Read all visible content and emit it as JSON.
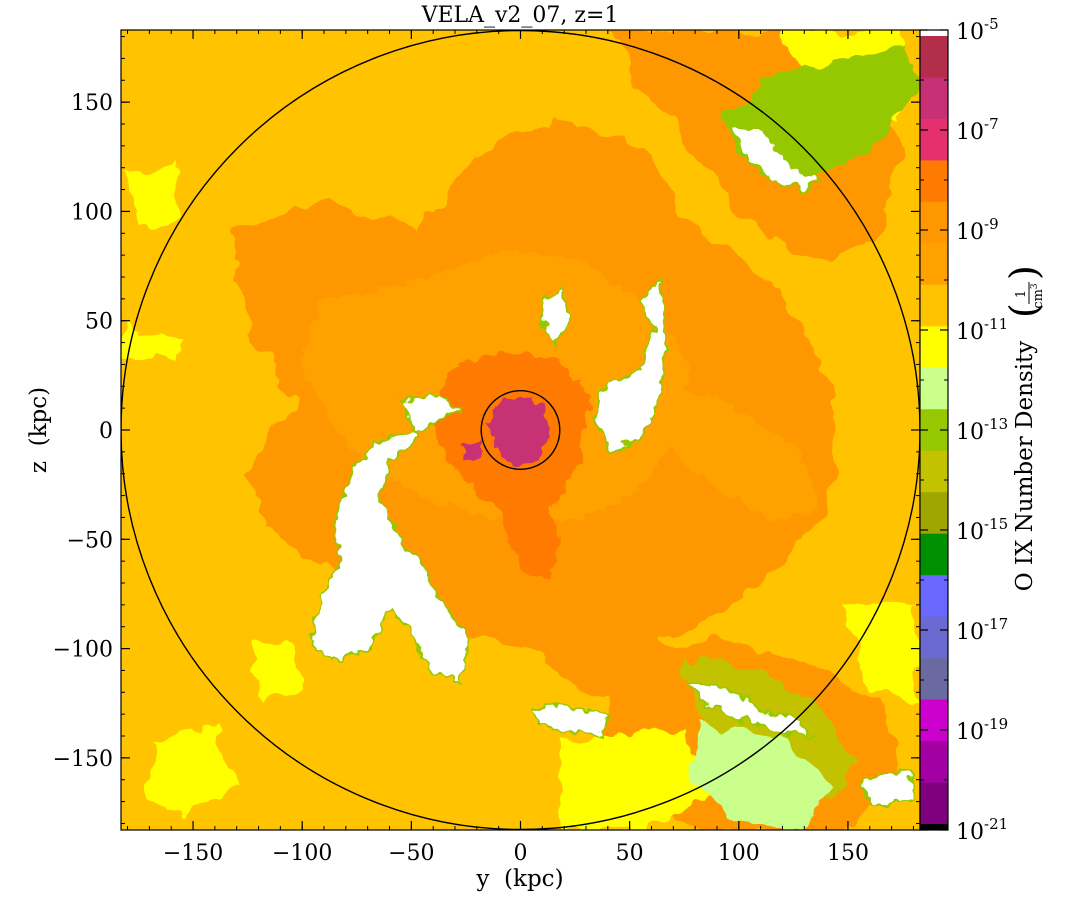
{
  "chart_data": {
    "type": "heatmap",
    "title": "VELA_v2_07, z=1",
    "xlabel": "y  (kpc)",
    "ylabel": "z  (kpc)",
    "xlim": [
      -183,
      183
    ],
    "ylim": [
      -183,
      183
    ],
    "xticks": [
      -150,
      -100,
      -50,
      0,
      50,
      100,
      150
    ],
    "yticks": [
      -150,
      -100,
      -50,
      0,
      50,
      100,
      150
    ],
    "xtick_labels": [
      "−150",
      "−100",
      "−50",
      "0",
      "50",
      "100",
      "150"
    ],
    "ytick_labels": [
      "−150",
      "−100",
      "−50",
      "0",
      "50",
      "100",
      "150"
    ],
    "circles": [
      {
        "center": [
          0,
          0
        ],
        "radius": 183
      },
      {
        "center": [
          0,
          0
        ],
        "radius": 18
      }
    ],
    "colorbar": {
      "label": "O IX Number Density",
      "unit_numerator": "1",
      "unit_denominator": "cm",
      "unit_denominator_exponent": "3",
      "scale": "log",
      "range_exponents": [
        -21,
        -5
      ],
      "tick_exponents": [
        -5,
        -7,
        -9,
        -11,
        -13,
        -15,
        -17,
        -19,
        -21
      ],
      "tick_base": "10",
      "colors_top_to_bottom": [
        "#ffffff",
        "#b22e4b",
        "#c73074",
        "#e6306e",
        "#ff7a00",
        "#ff9700",
        "#ffa200",
        "#ffc300",
        "#ffff00",
        "#c9ff8a",
        "#95c800",
        "#c2c200",
        "#9fa600",
        "#008f00",
        "#6969ff",
        "#6a6ad2",
        "#6a6aa0",
        "#cc00cc",
        "#a200a2",
        "#7f007f",
        "#000000"
      ]
    },
    "field_colors": {
      "background": "#ffc300",
      "dense": "#ffa200",
      "denser": "#ff9700",
      "core": "#ff7a00",
      "center": "#c73074",
      "low": "#ffff00",
      "lower": "#c9ff8a",
      "green": "#95c800",
      "olive": "#c2c200",
      "empty": "#ffffff"
    }
  }
}
